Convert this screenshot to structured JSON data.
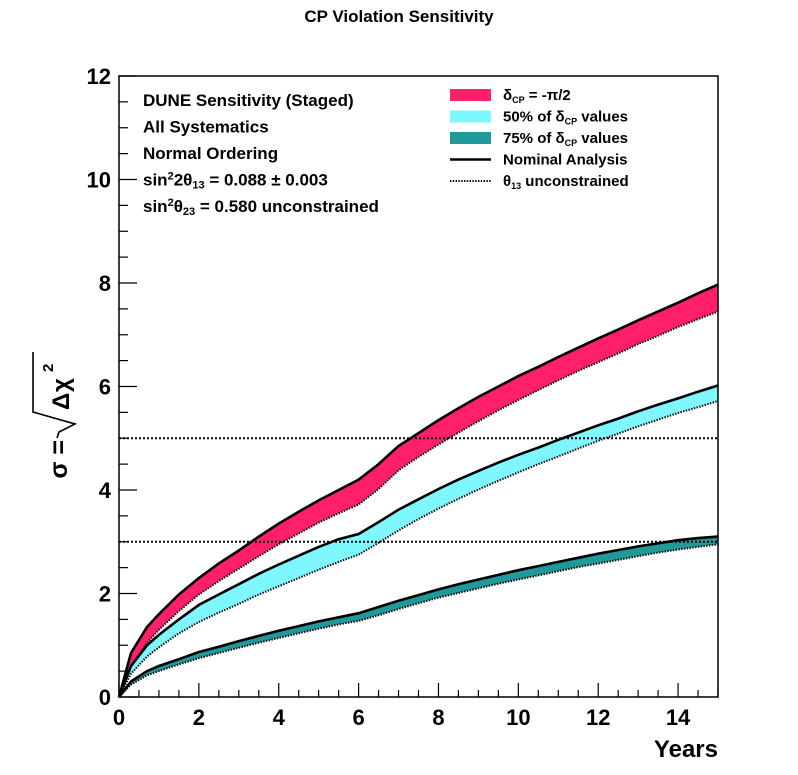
{
  "chart_data": {
    "type": "area",
    "title": "CP Violation Sensitivity",
    "xlabel": "Years",
    "ylabel_text": "σ = ",
    "ylabel_radicand_delta": "Δ",
    "ylabel_radicand_chi": "χ",
    "ylabel_radicand_exp": "2",
    "xlim": [
      0,
      15
    ],
    "ylim": [
      0,
      12
    ],
    "xticks": [
      "0",
      "2",
      "4",
      "6",
      "8",
      "10",
      "12",
      "14"
    ],
    "yticks": [
      "0",
      "2",
      "4",
      "6",
      "8",
      "10",
      "12"
    ],
    "grid": false,
    "legend_position": "top-right",
    "annotations": [
      {
        "parts": [
          {
            "t": "DUNE Sensitivity (Staged)"
          }
        ]
      },
      {
        "parts": [
          {
            "t": "All Systematics"
          }
        ]
      },
      {
        "parts": [
          {
            "t": "Normal Ordering"
          }
        ]
      },
      {
        "parts": [
          {
            "t": "sin"
          },
          {
            "t": "2",
            "sup": true
          },
          {
            "t": "2θ"
          },
          {
            "t": "13",
            "sub": true
          },
          {
            "t": " = 0.088 ± 0.003"
          }
        ]
      },
      {
        "parts": [
          {
            "t": "sin"
          },
          {
            "t": "2",
            "sup": true
          },
          {
            "t": "θ"
          },
          {
            "t": "23",
            "sub": true
          },
          {
            "t": " = 0.580 unconstrained"
          }
        ]
      }
    ],
    "legend": [
      {
        "kind": "band",
        "color": "#ff1f6b",
        "parts": [
          {
            "t": "δ"
          },
          {
            "t": "CP",
            "sub": true
          },
          {
            "t": " = -π/2"
          }
        ]
      },
      {
        "kind": "band",
        "color": "#7ff7ff",
        "parts": [
          {
            "t": "50% of δ"
          },
          {
            "t": "CP",
            "sub": true
          },
          {
            "t": " values"
          }
        ]
      },
      {
        "kind": "band",
        "color": "#1f9999",
        "parts": [
          {
            "t": "75% of δ"
          },
          {
            "t": "CP",
            "sub": true
          },
          {
            "t": " values"
          }
        ]
      },
      {
        "kind": "solid",
        "color": "#000000",
        "parts": [
          {
            "t": "Nominal Analysis"
          }
        ]
      },
      {
        "kind": "dotted",
        "color": "#000000",
        "parts": [
          {
            "t": "θ"
          },
          {
            "t": "13",
            "sub": true
          },
          {
            "t": " unconstrained"
          }
        ]
      }
    ],
    "reference_lines": [
      3,
      5
    ],
    "x": [
      0,
      0.3,
      0.7,
      1,
      1.5,
      2,
      2.5,
      3,
      3.5,
      4,
      4.5,
      5,
      5.5,
      6,
      6.5,
      7,
      7.5,
      8,
      8.5,
      9,
      9.5,
      10,
      10.5,
      11,
      11.5,
      12,
      12.5,
      13,
      13.5,
      14,
      14.5,
      15
    ],
    "series": [
      {
        "name": "δCP = -π/2",
        "color": "#ff1f6b",
        "nominal": [
          0,
          0.85,
          1.35,
          1.6,
          1.98,
          2.3,
          2.58,
          2.83,
          3.1,
          3.35,
          3.58,
          3.8,
          4.0,
          4.2,
          4.5,
          4.85,
          5.1,
          5.35,
          5.58,
          5.8,
          6.0,
          6.2,
          6.38,
          6.57,
          6.75,
          6.93,
          7.1,
          7.28,
          7.45,
          7.62,
          7.8,
          7.97
        ],
        "unconstrained": [
          0,
          0.55,
          1.05,
          1.3,
          1.66,
          1.98,
          2.24,
          2.48,
          2.72,
          2.95,
          3.16,
          3.37,
          3.55,
          3.72,
          4.02,
          4.38,
          4.64,
          4.88,
          5.11,
          5.33,
          5.54,
          5.74,
          5.93,
          6.12,
          6.3,
          6.47,
          6.64,
          6.82,
          6.98,
          7.15,
          7.3,
          7.45
        ]
      },
      {
        "name": "50% of δCP values",
        "color": "#7ff7ff",
        "nominal": [
          0,
          0.6,
          1.0,
          1.2,
          1.5,
          1.78,
          1.98,
          2.18,
          2.38,
          2.56,
          2.73,
          2.9,
          3.05,
          3.15,
          3.38,
          3.62,
          3.82,
          4.02,
          4.2,
          4.37,
          4.53,
          4.68,
          4.82,
          4.97,
          5.11,
          5.25,
          5.38,
          5.52,
          5.65,
          5.77,
          5.9,
          6.02
        ],
        "unconstrained": [
          0,
          0.45,
          0.78,
          0.96,
          1.23,
          1.45,
          1.63,
          1.8,
          1.98,
          2.14,
          2.3,
          2.46,
          2.61,
          2.75,
          2.98,
          3.22,
          3.44,
          3.64,
          3.83,
          4.01,
          4.18,
          4.34,
          4.5,
          4.65,
          4.8,
          4.95,
          5.09,
          5.23,
          5.36,
          5.49,
          5.6,
          5.72
        ]
      },
      {
        "name": "75% of δCP values",
        "color": "#1f9999",
        "nominal": [
          0,
          0.3,
          0.5,
          0.6,
          0.73,
          0.87,
          0.97,
          1.08,
          1.18,
          1.28,
          1.37,
          1.46,
          1.54,
          1.62,
          1.74,
          1.86,
          1.97,
          2.08,
          2.18,
          2.27,
          2.36,
          2.45,
          2.53,
          2.61,
          2.69,
          2.77,
          2.84,
          2.91,
          2.97,
          3.03,
          3.07,
          3.1
        ],
        "unconstrained": [
          0,
          0.24,
          0.42,
          0.5,
          0.63,
          0.75,
          0.85,
          0.95,
          1.05,
          1.14,
          1.23,
          1.32,
          1.4,
          1.47,
          1.58,
          1.7,
          1.81,
          1.92,
          2.01,
          2.1,
          2.19,
          2.27,
          2.35,
          2.43,
          2.51,
          2.58,
          2.65,
          2.72,
          2.79,
          2.85,
          2.9,
          2.95
        ]
      }
    ]
  }
}
